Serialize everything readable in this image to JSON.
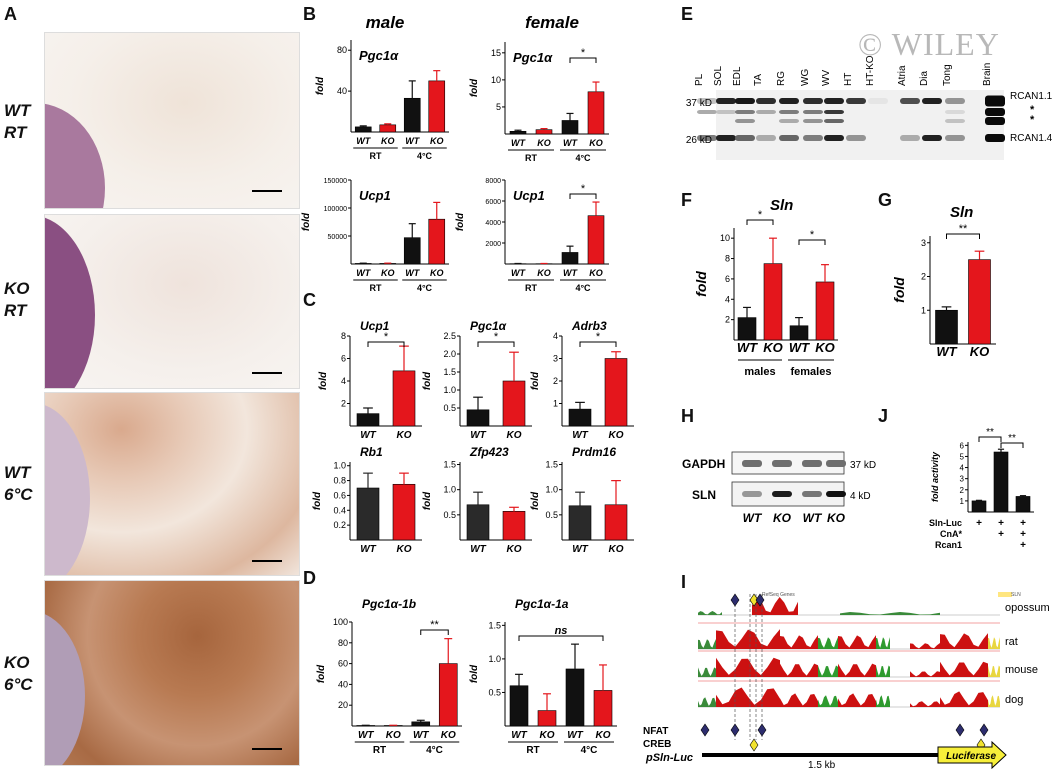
{
  "watermark": "© WILEY",
  "panels": {
    "A": "A",
    "B": "B",
    "C": "C",
    "D": "D",
    "E": "E",
    "F": "F",
    "G": "G",
    "H": "H",
    "I": "I",
    "J": "J"
  },
  "panelA": {
    "rows": [
      {
        "l1": "WT",
        "l2": "RT"
      },
      {
        "l1": "KO",
        "l2": "RT"
      },
      {
        "l1": "WT",
        "l2": "6°C"
      },
      {
        "l1": "KO",
        "l2": "6°C"
      }
    ]
  },
  "panelB": {
    "male": "male",
    "female": "female",
    "charts": [
      {
        "title": "Pgc1α",
        "ylabel": "fold",
        "ticks": [
          "40",
          "80"
        ],
        "ymax": 90,
        "values": [
          5,
          7,
          33,
          50
        ],
        "err": [
          1,
          1,
          17,
          10
        ],
        "sig": ""
      },
      {
        "title": "Pgc1α",
        "ylabel": "fold",
        "ticks": [
          "5",
          "10",
          "15"
        ],
        "ymax": 17,
        "values": [
          0.5,
          0.8,
          2.5,
          7.8
        ],
        "err": [
          0.2,
          0.2,
          1.3,
          1.8
        ],
        "sig": "*"
      },
      {
        "title": "Ucp1",
        "ylabel": "fold",
        "ticks": [
          "50000",
          "100000",
          "150000"
        ],
        "ymax": 150000,
        "values": [
          1000,
          1000,
          47000,
          80000
        ],
        "err": [
          500,
          500,
          25000,
          30000
        ],
        "sig": ""
      },
      {
        "title": "Ucp1",
        "ylabel": "fold",
        "ticks": [
          "2000",
          "4000",
          "6000",
          "8000"
        ],
        "ymax": 8000,
        "values": [
          30,
          30,
          1100,
          4600
        ],
        "err": [
          20,
          20,
          600,
          1300
        ],
        "sig": "*"
      }
    ],
    "groups": [
      "WT",
      "KO",
      "WT",
      "KO"
    ],
    "conds": [
      "RT",
      "4°C"
    ]
  },
  "panelC": {
    "charts": [
      {
        "title": "Ucp1",
        "ticks": [
          "2",
          "4",
          "6",
          "8"
        ],
        "ymax": 8,
        "values": [
          1.1,
          4.9
        ],
        "err": [
          0.5,
          2.2
        ],
        "sig": "*"
      },
      {
        "title": "Pgc1α",
        "ticks": [
          "0.5",
          "1.0",
          "1.5",
          "2.0",
          "2.5"
        ],
        "ymax": 2.5,
        "values": [
          0.45,
          1.25
        ],
        "err": [
          0.35,
          0.8
        ],
        "sig": "*"
      },
      {
        "title": "Adrb3",
        "ticks": [
          "1",
          "2",
          "3",
          "4"
        ],
        "ymax": 4,
        "values": [
          0.75,
          3.0
        ],
        "err": [
          0.3,
          0.3
        ],
        "sig": "*"
      },
      {
        "title": "Rb1",
        "ticks": [
          "0.2",
          "0.4",
          "0.6",
          "0.8",
          "1.0"
        ],
        "ymax": 1.05,
        "values": [
          0.7,
          0.75
        ],
        "err": [
          0.2,
          0.15
        ],
        "sig": ""
      },
      {
        "title": "Zfp423",
        "ticks": [
          "0.5",
          "1.0",
          "1.5"
        ],
        "ymax": 1.55,
        "values": [
          0.7,
          0.57
        ],
        "err": [
          0.25,
          0.08
        ],
        "sig": ""
      },
      {
        "title": "Prdm16",
        "ticks": [
          "0.5",
          "1.0",
          "1.5"
        ],
        "ymax": 1.55,
        "values": [
          0.68,
          0.7
        ],
        "err": [
          0.27,
          0.48
        ],
        "sig": ""
      }
    ],
    "ylabel": "fold",
    "groups": [
      "WT",
      "KO"
    ]
  },
  "panelD": {
    "charts": [
      {
        "title": "Pgc1α-1b",
        "ticks": [
          "20",
          "40",
          "60",
          "80",
          "100"
        ],
        "ymax": 100,
        "values": [
          0.5,
          0.5,
          4,
          60
        ],
        "err": [
          0.2,
          0.2,
          1.5,
          24
        ],
        "sig": "**"
      },
      {
        "title": "Pgc1α-1a",
        "ticks": [
          "0.5",
          "1.0",
          "1.5"
        ],
        "ymax": 1.55,
        "values": [
          0.6,
          0.23,
          0.85,
          0.53
        ],
        "err": [
          0.17,
          0.25,
          0.37,
          0.38
        ],
        "sig": "ns"
      }
    ],
    "ylabel": "fold",
    "groups": [
      "WT",
      "KO",
      "WT",
      "KO"
    ],
    "conds": [
      "RT",
      "4°C"
    ]
  },
  "panelE": {
    "lanes": [
      "PL",
      "SOL",
      "EDL",
      "TA",
      "RG",
      "WG",
      "WV",
      "HT",
      "HT-KO",
      "Atria",
      "Dia",
      "Tong",
      "Brain"
    ],
    "left": [
      "37 kD",
      "26 kD"
    ],
    "right": [
      "RCAN1.1",
      "*",
      "*",
      "RCAN1.4"
    ]
  },
  "panelF": {
    "title": "Sln",
    "ylabel": "fold",
    "ticks": [
      "2",
      "4",
      "6",
      "8",
      "10"
    ],
    "ymax": 11,
    "values": [
      2.2,
      7.5,
      1.4,
      5.7
    ],
    "err": [
      1.0,
      2.5,
      0.8,
      1.7
    ],
    "sig": [
      "*",
      "*"
    ],
    "groups": [
      "WT",
      "KO",
      "WT",
      "KO"
    ],
    "sexes": [
      "males",
      "females"
    ]
  },
  "panelG": {
    "title": "Sln",
    "ylabel": "fold",
    "ticks": [
      "1",
      "2",
      "3"
    ],
    "ymax": 3.2,
    "values": [
      1.0,
      2.5
    ],
    "err": [
      0.1,
      0.25
    ],
    "sig": "**",
    "groups": [
      "WT",
      "KO"
    ]
  },
  "panelH": {
    "rows": [
      "GAPDH",
      "SLN"
    ],
    "sizes": [
      "37 kD",
      "4 kD"
    ],
    "lanes": [
      "WT",
      "KO",
      "WT",
      "KO"
    ]
  },
  "panelJ": {
    "ylabel": "fold activity",
    "ticks": [
      "1",
      "2",
      "3",
      "4",
      "5",
      "6"
    ],
    "ymax": 6.3,
    "values": [
      1.0,
      5.4,
      1.4
    ],
    "err": [
      0.05,
      0.25,
      0.07
    ],
    "sig": [
      "**",
      "**"
    ],
    "rows": [
      {
        "label": "Sln-Luc",
        "marks": [
          "+",
          "+",
          "+"
        ]
      },
      {
        "label": "CnA*",
        "marks": [
          "",
          "+",
          "+"
        ]
      },
      {
        "label": "Rcan1",
        "marks": [
          "",
          "",
          "+"
        ]
      }
    ]
  },
  "panelI": {
    "species": [
      "opossum",
      "rat",
      "mouse",
      "dog"
    ],
    "sites": [
      "NFAT",
      "CREB"
    ],
    "construct": "pSln-Luc",
    "reporter": "Luciferase",
    "length": "1.5 kb",
    "tracklabel": "RefSeq Genes",
    "genelabel": "SLN"
  }
}
